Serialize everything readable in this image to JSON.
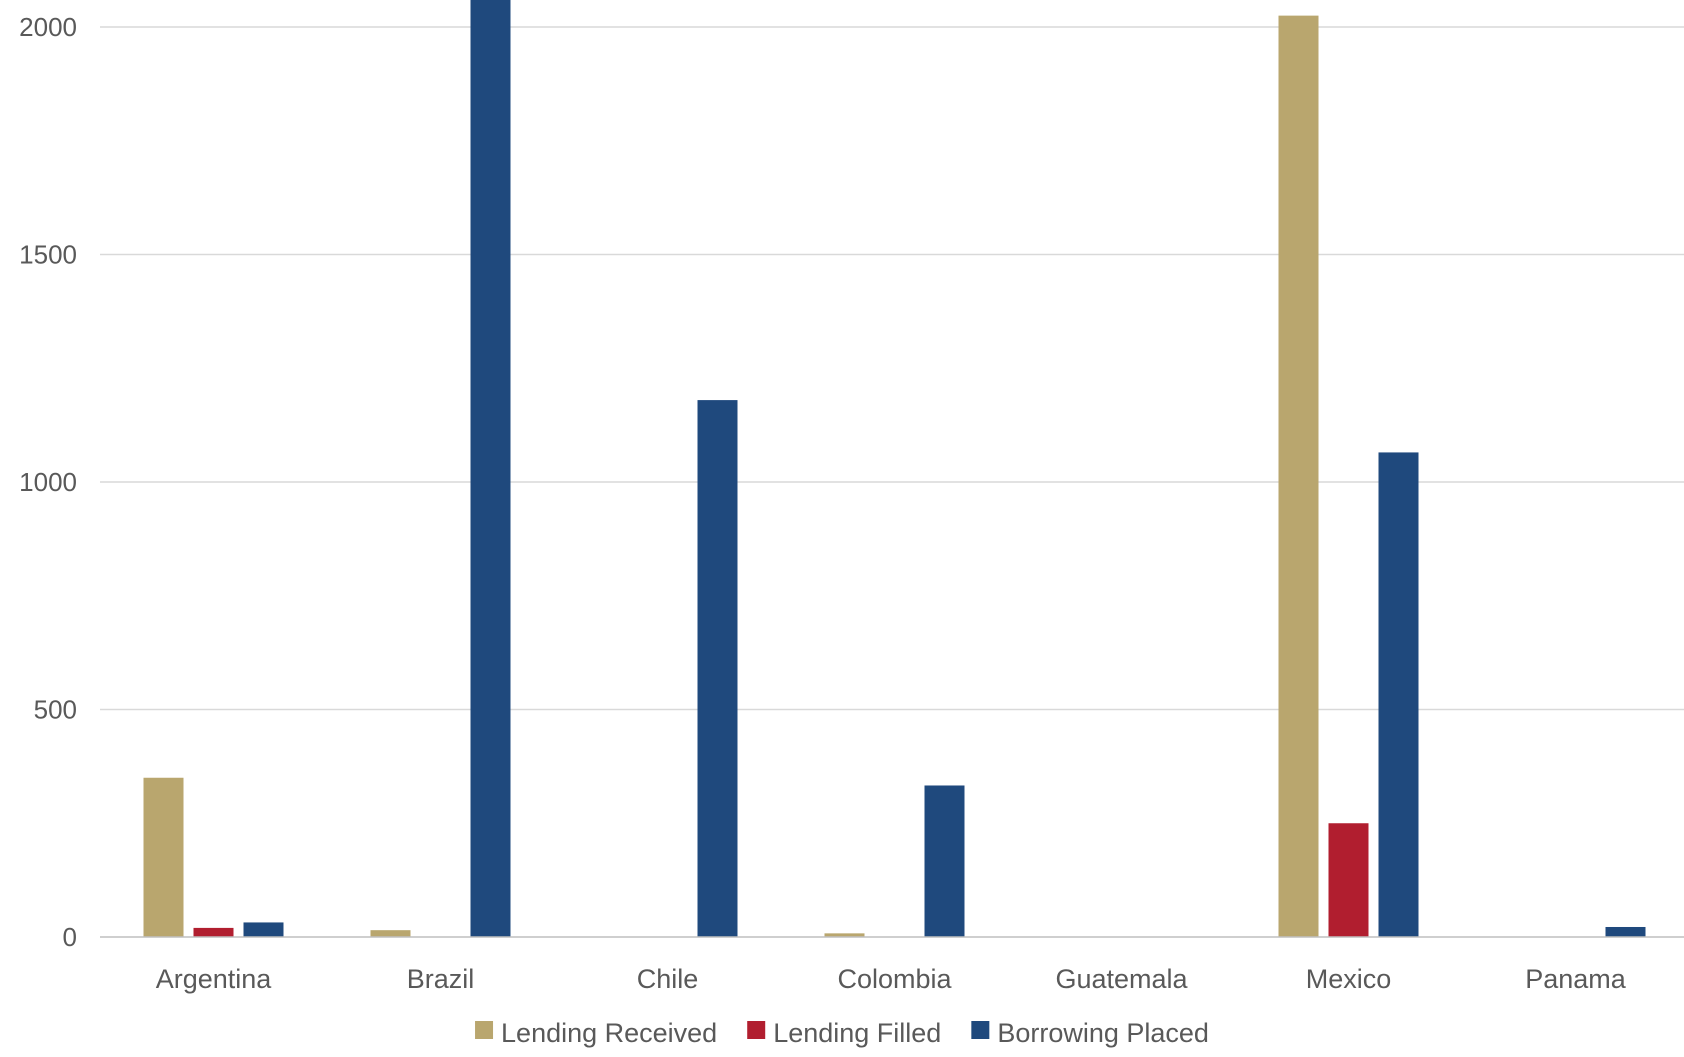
{
  "chart_data": {
    "type": "bar",
    "categories": [
      "Argentina",
      "Brazil",
      "Chile",
      "Colombia",
      "Guatemala",
      "Mexico",
      "Panama"
    ],
    "series": [
      {
        "name": "Lending Received",
        "color": "#b9a66e",
        "values": [
          350,
          15,
          0,
          8,
          0,
          2025,
          0
        ]
      },
      {
        "name": "Lending Filled",
        "color": "#b11e2f",
        "values": [
          20,
          0,
          0,
          0,
          0,
          250,
          0
        ]
      },
      {
        "name": "Borrowing Placed",
        "color": "#1f497d",
        "values": [
          32,
          2100,
          1180,
          333,
          0,
          1065,
          22
        ]
      }
    ],
    "yticks": [
      0,
      500,
      1000,
      1500,
      2000
    ],
    "ylim": [
      0,
      2060
    ],
    "grid": true,
    "legend_position": "bottom",
    "title": "",
    "xlabel": "",
    "ylabel": ""
  }
}
